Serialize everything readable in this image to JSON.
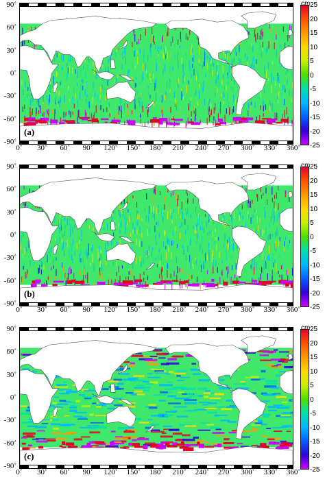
{
  "panels": [
    {
      "label": "(a)"
    },
    {
      "label": "(b)"
    },
    {
      "label": "(c)"
    }
  ],
  "y_ticks": [
    "90˚",
    "60˚",
    "30˚",
    "0˚",
    "-30˚",
    "-60˚",
    "-90˚"
  ],
  "x_ticks": [
    "0˚",
    "30˚",
    "60˚",
    "90˚",
    "120˚",
    "150˚",
    "180˚",
    "210˚",
    "240˚",
    "270˚",
    "300˚",
    "330˚",
    "360˚"
  ],
  "colorbar": {
    "unit": "cm",
    "ticks": [
      "25",
      "20",
      "15",
      "10",
      "5",
      "0",
      "-5",
      "-10",
      "-15",
      "-20",
      "-25"
    ],
    "colors": [
      "#e8002a",
      "#ff5500",
      "#ff9a00",
      "#ffd800",
      "#c8f000",
      "#4ce000",
      "#00e0b0",
      "#00b8ff",
      "#0060ff",
      "#3000e0",
      "#d000ff"
    ]
  },
  "map": {
    "ocean_base_color": "#3fe86a",
    "land_color": "#ffffff",
    "coastline_color": "#555555",
    "data_latitude_range": [
      -66,
      66
    ]
  }
}
